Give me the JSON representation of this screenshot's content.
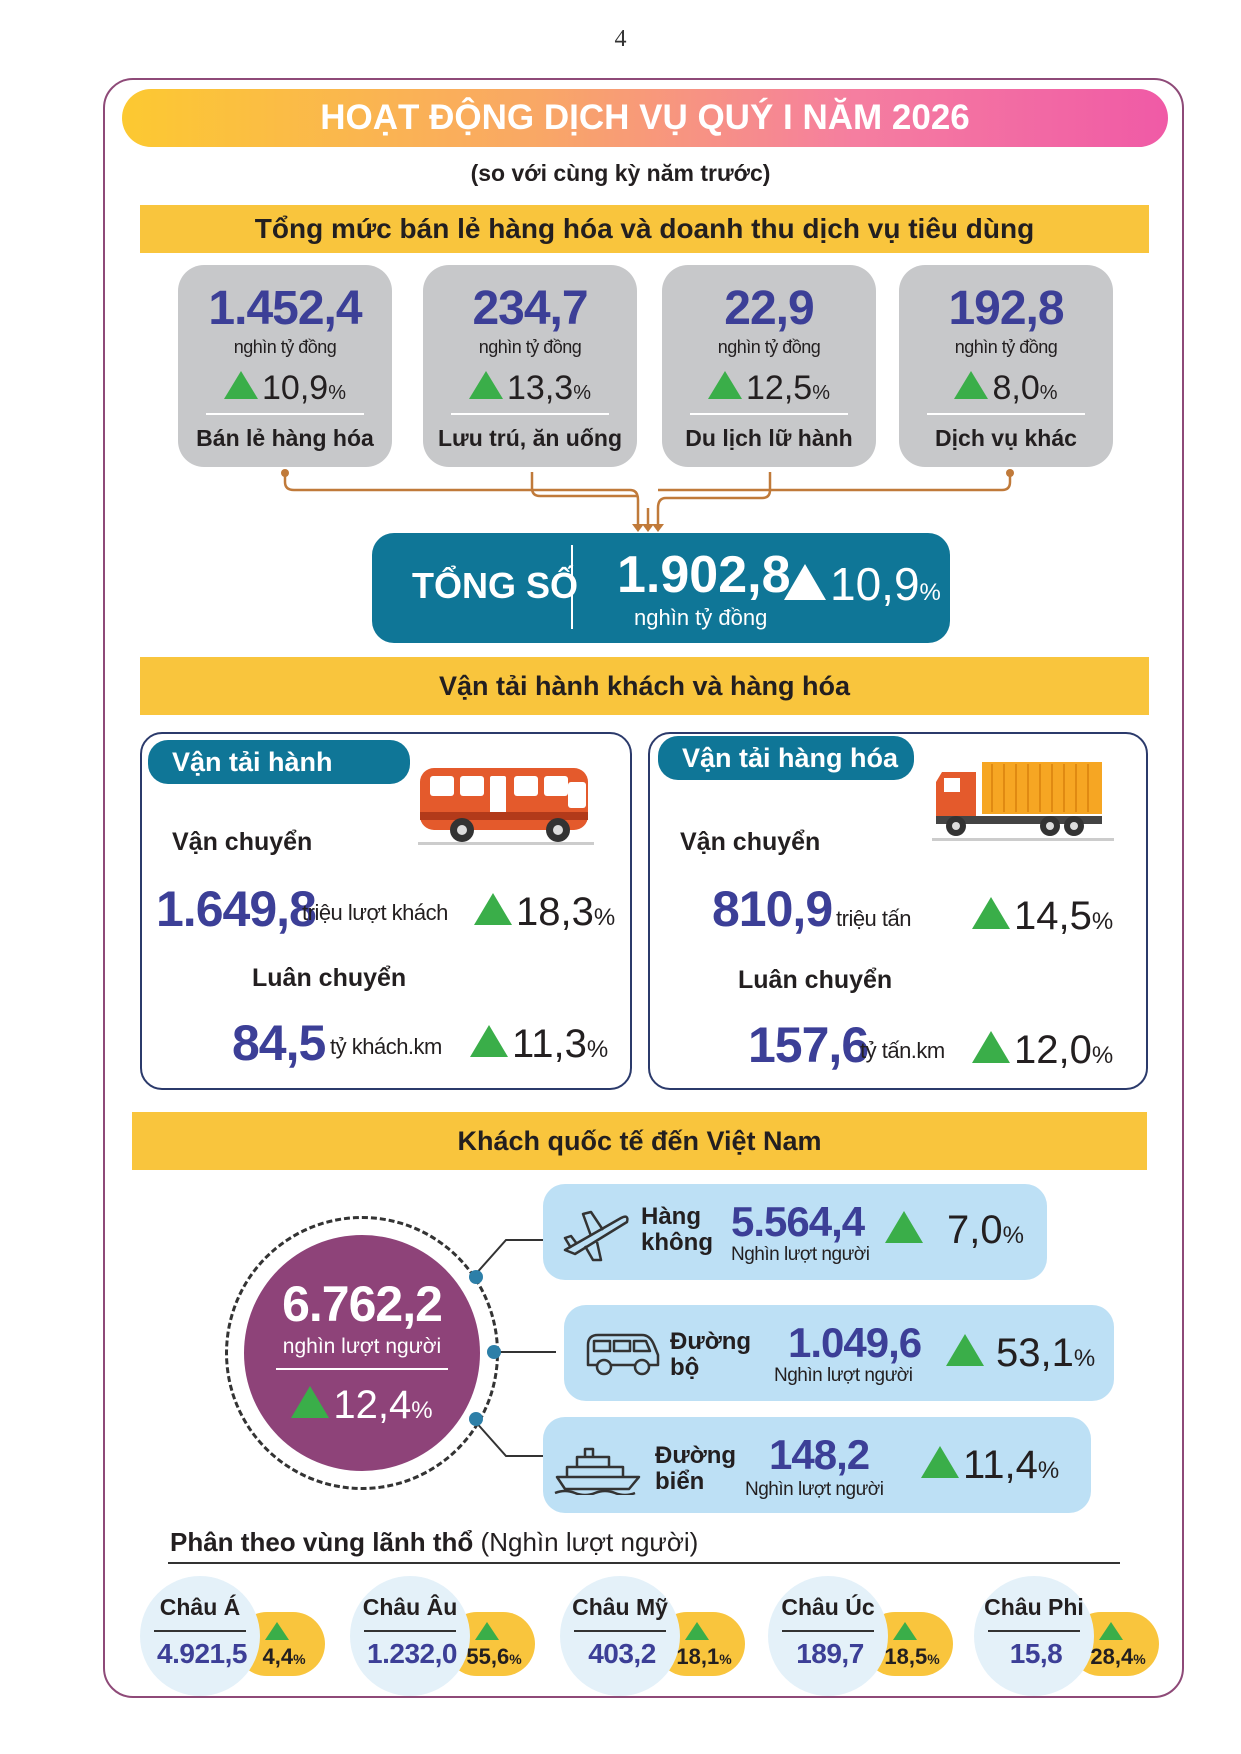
{
  "page_number": "4",
  "title": "HOẠT ĐỘNG DỊCH VỤ QUÝ I NĂM 2026",
  "subtitle": "(so với cùng kỳ năm trước)",
  "retail": {
    "heading": "Tổng mức bán lẻ hàng hóa và doanh thu dịch vụ tiêu dùng",
    "items": [
      {
        "value": "1.452,4",
        "unit": "nghìn tỷ đồng",
        "growth": "10,9",
        "label": "Bán lẻ hàng hóa"
      },
      {
        "value": "234,7",
        "unit": "nghìn tỷ đồng",
        "growth": "13,3",
        "label": "Lưu trú, ăn uống"
      },
      {
        "value": "22,9",
        "unit": "nghìn tỷ đồng",
        "growth": "12,5",
        "label": "Du lịch lữ hành"
      },
      {
        "value": "192,8",
        "unit": "nghìn tỷ đồng",
        "growth": "8,0",
        "label": "Dịch vụ khác"
      }
    ],
    "total": {
      "label": "TỔNG SỐ",
      "value": "1.902,8",
      "unit": "nghìn tỷ đồng",
      "growth": "10,9"
    },
    "percent": "%"
  },
  "transport": {
    "heading": "Vận tải hành khách và hàng hóa",
    "passenger": {
      "title": "Vận tải hành khách",
      "carry_label": "Vận chuyển",
      "carry_value": "1.649,8",
      "carry_unit": "triệu lượt khách",
      "carry_growth": "18,3",
      "rotate_label": "Luân chuyển",
      "rotate_value": "84,5",
      "rotate_unit": "tỷ khách.km",
      "rotate_growth": "11,3"
    },
    "cargo": {
      "title": "Vận tải hàng hóa",
      "carry_label": "Vận chuyển",
      "carry_value": "810,9",
      "carry_unit": "triệu tấn",
      "carry_growth": "14,5",
      "rotate_label": "Luân chuyển",
      "rotate_value": "157,6",
      "rotate_unit": "tỷ tấn.km",
      "rotate_growth": "12,0"
    }
  },
  "international": {
    "heading": "Khách quốc tế đến Việt Nam",
    "total_value": "6.762,2",
    "total_unit": "nghìn lượt người",
    "total_growth": "12,4",
    "modes": [
      {
        "name1": "Hàng",
        "name2": "không",
        "value": "5.564,4",
        "unit": "Nghìn lượt người",
        "growth": "7,0",
        "icon": "airplane-icon"
      },
      {
        "name1": "Đường",
        "name2": "bộ",
        "value": "1.049,6",
        "unit": "Nghìn lượt người",
        "growth": "53,1",
        "icon": "car-icon"
      },
      {
        "name1": "Đường",
        "name2": "biển",
        "value": "148,2",
        "unit": "Nghìn lượt người",
        "growth": "11,4",
        "icon": "ship-icon"
      }
    ],
    "regions_title_bold": "Phân theo vùng lãnh thổ",
    "regions_title_note": " (Nghìn lượt người)",
    "regions": [
      {
        "name": "Châu Á",
        "value": "4.921,5",
        "growth": "4,4"
      },
      {
        "name": "Châu Âu",
        "value": "1.232,0",
        "growth": "55,6"
      },
      {
        "name": "Châu Mỹ",
        "value": "403,2",
        "growth": "18,1"
      },
      {
        "name": "Châu Úc",
        "value": "189,7",
        "growth": "18,5"
      },
      {
        "name": "Châu Phi",
        "value": "15,8",
        "growth": "28,4"
      }
    ]
  },
  "colors": {
    "accent_blue": "#0f7697",
    "number_blue": "#3c3f97",
    "purple": "#8e4379",
    "yellow": "#f9c53d",
    "green": "#3aae49",
    "light_blue": "#bde0f5",
    "card_gray": "#c7c8ca"
  }
}
